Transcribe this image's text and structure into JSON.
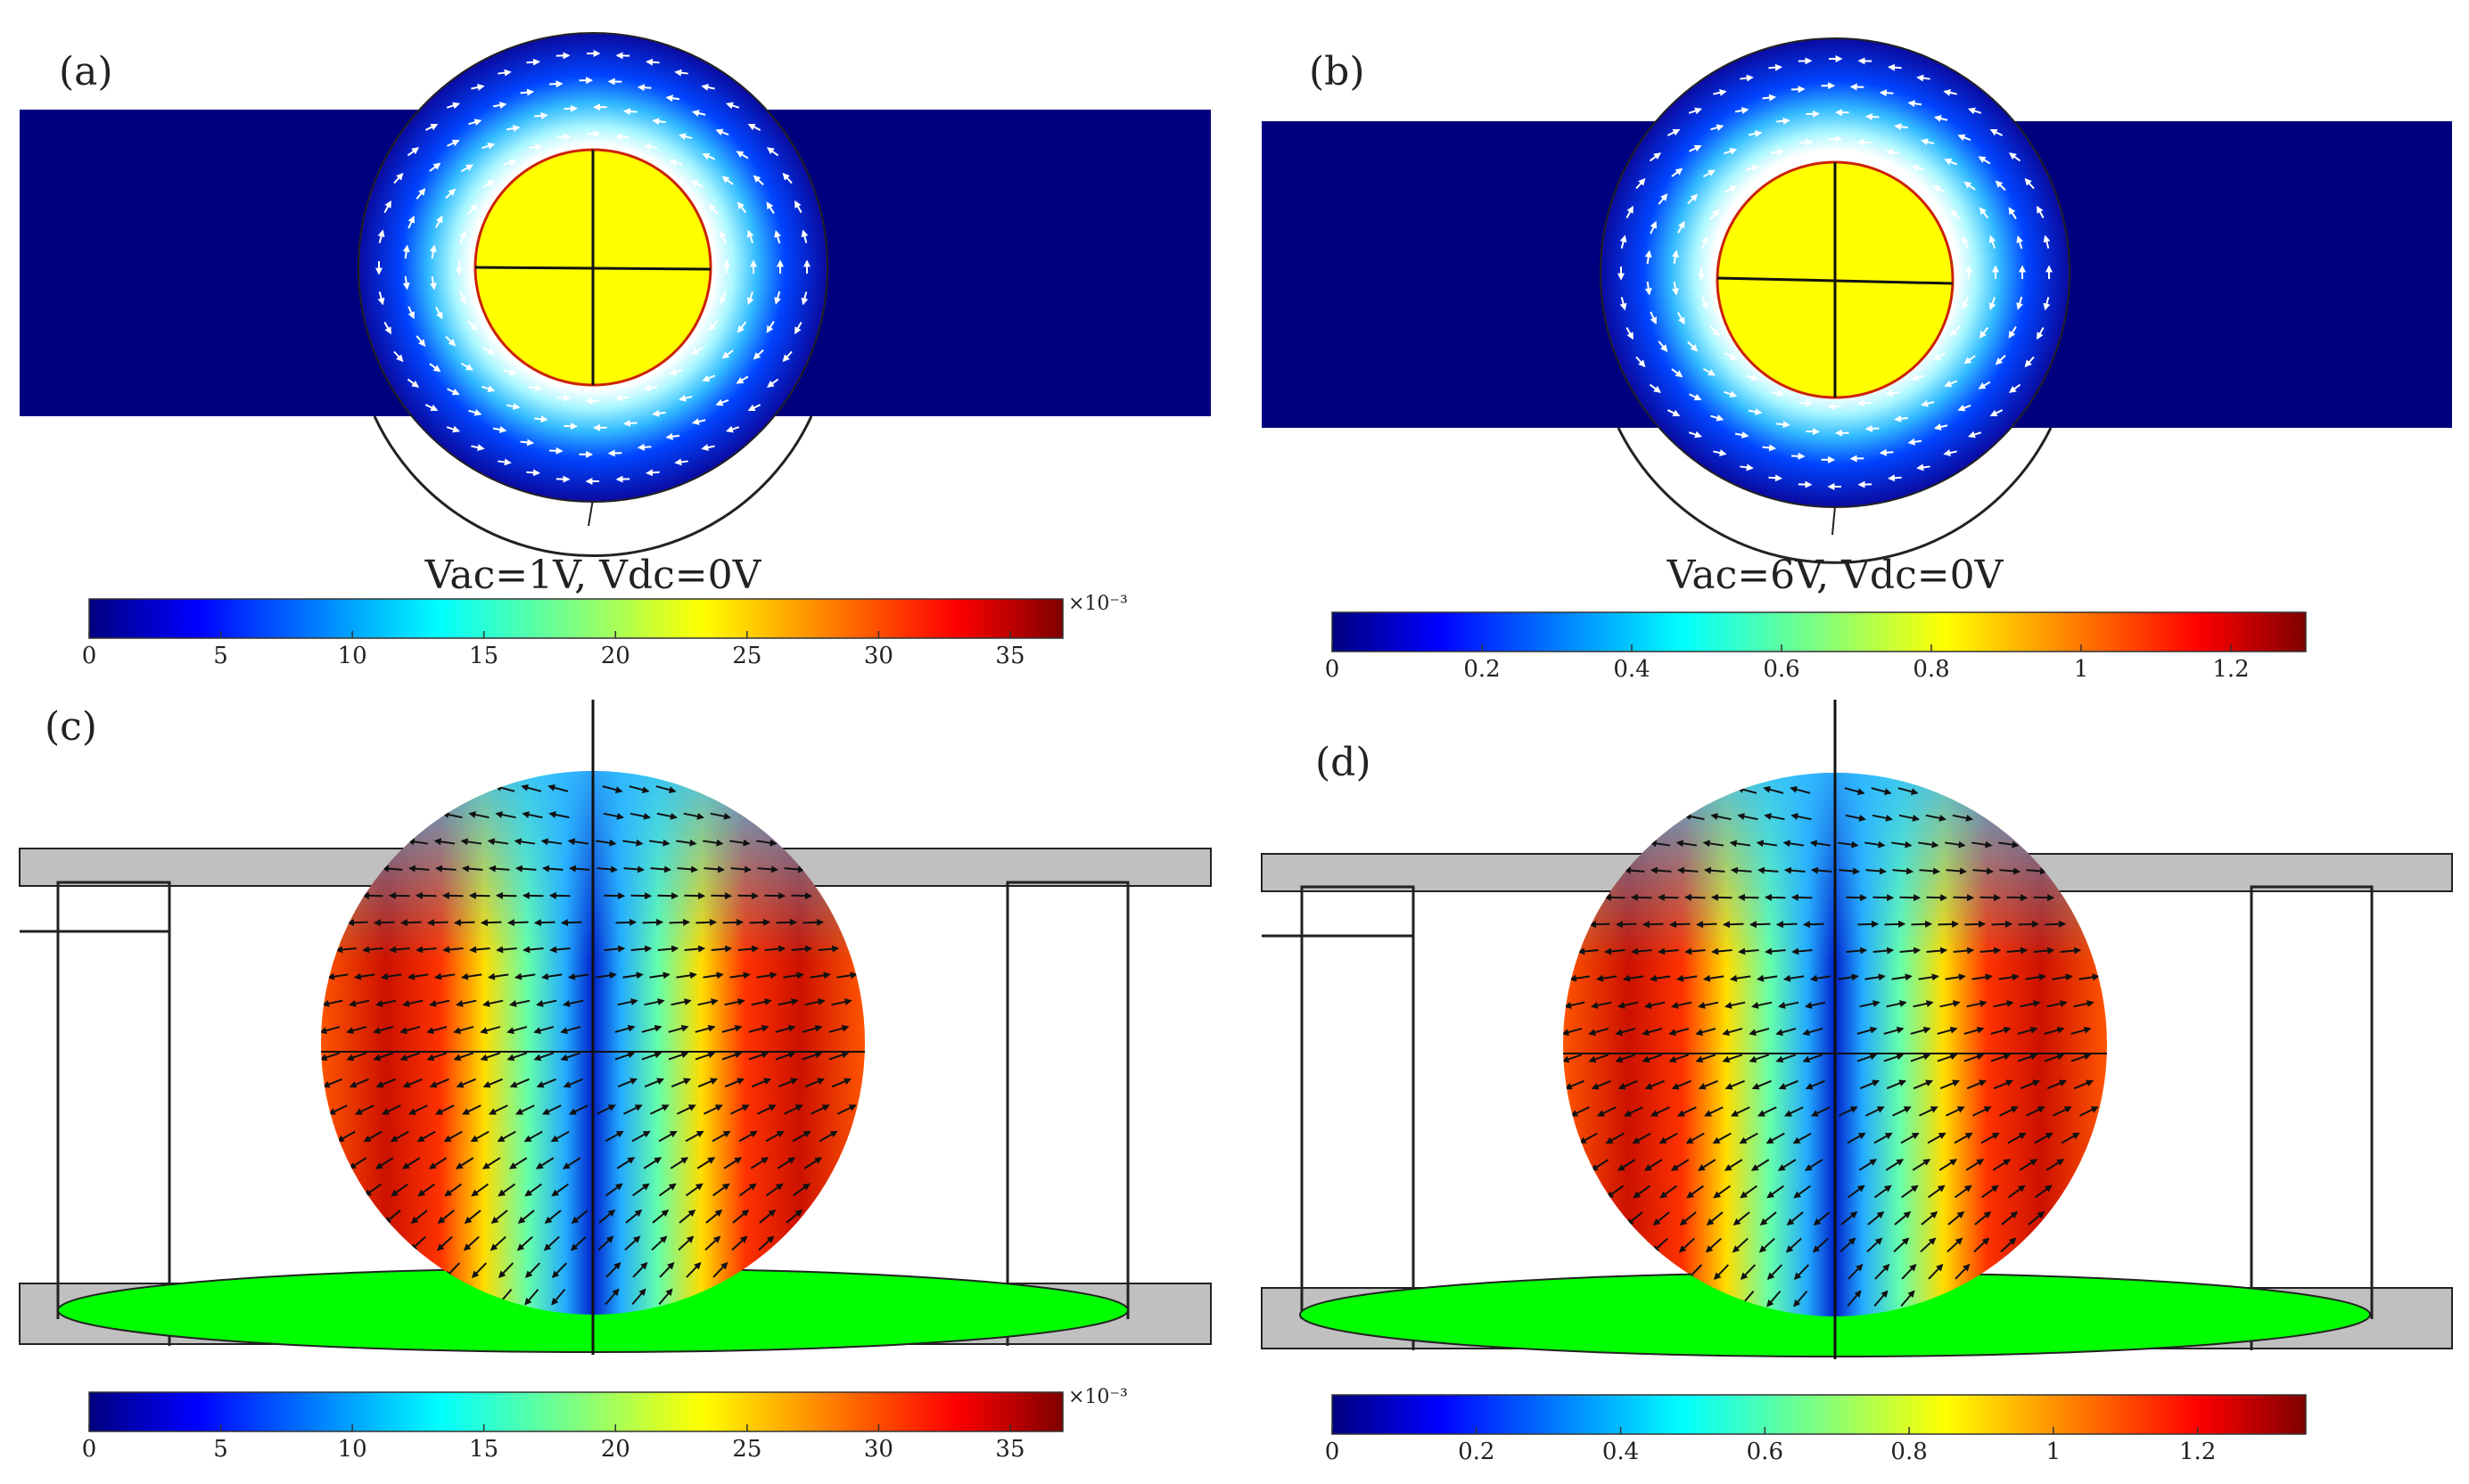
{
  "panels": [
    {
      "label": "(a)",
      "condition": "Vac=1V, Vdc=0V"
    },
    {
      "label": "(b)",
      "condition": "Vac=6V, Vdc=0V"
    },
    {
      "label": "(c)"
    },
    {
      "label": "(d)"
    }
  ],
  "colorbars": [
    {
      "ticks": [
        "0",
        "5",
        "10",
        "15",
        "20",
        "25",
        "30",
        "35"
      ],
      "range": [
        0,
        37
      ],
      "exponent_label": "×10⁻³"
    },
    {
      "ticks": [
        "0",
        "0.2",
        "0.4",
        "0.6",
        "0.8",
        "1",
        "1.2"
      ],
      "range": [
        0,
        1.3
      ],
      "exponent_label": ""
    },
    {
      "ticks": [
        "0",
        "5",
        "10",
        "15",
        "20",
        "25",
        "30",
        "35"
      ],
      "range": [
        0,
        37
      ],
      "exponent_label": "×10⁻³"
    },
    {
      "ticks": [
        "0",
        "0.2",
        "0.4",
        "0.6",
        "0.8",
        "1",
        "1.2"
      ],
      "range": [
        0,
        1.35
      ],
      "exponent_label": ""
    }
  ],
  "colors": {
    "channel": "#00007f",
    "particle": "#ffff00",
    "substrate": "#00ff00",
    "wall_gray": "#c0c0c0",
    "jet": [
      "#00007f",
      "#0000ff",
      "#007fff",
      "#00ffff",
      "#7fff7f",
      "#ffff00",
      "#ff7f00",
      "#ff0000",
      "#7f0000"
    ]
  }
}
